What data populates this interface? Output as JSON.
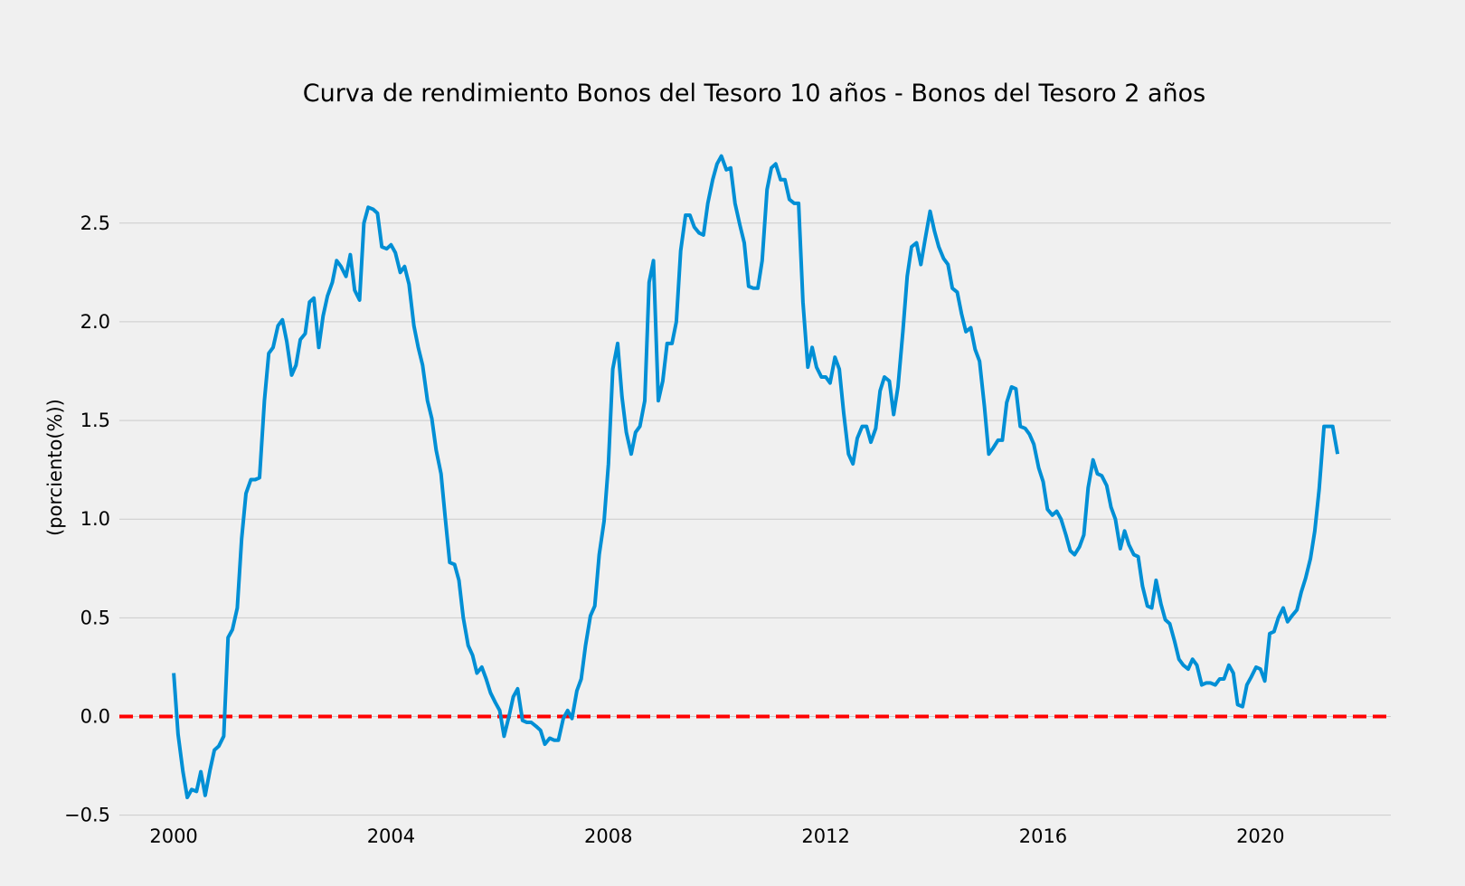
{
  "chart_data": {
    "type": "line",
    "title": "Curva de rendimiento Bonos del Tesoro 10 años - Bonos del Tesoro 2 años",
    "ylabel": "(porciento(%))",
    "xlabel": "",
    "xlim": [
      1999.0,
      2022.4
    ],
    "ylim": [
      -0.52,
      2.98
    ],
    "x_ticks": [
      2000,
      2004,
      2008,
      2012,
      2016,
      2020
    ],
    "x_tick_labels": [
      "2000",
      "2004",
      "2008",
      "2012",
      "2016",
      "2020"
    ],
    "y_ticks": [
      -0.5,
      0.0,
      0.5,
      1.0,
      1.5,
      2.0,
      2.5
    ],
    "y_tick_labels": [
      "−0.5",
      "0.0",
      "0.5",
      "1.0",
      "1.5",
      "2.0",
      "2.5"
    ],
    "grid": "horizontal",
    "reference_line": {
      "y": 0.0,
      "color": "#ff0000",
      "style": "dashed"
    },
    "series_color": "#008fd5",
    "background": "#f0f0f0",
    "series": [
      {
        "x": [
          2000.0,
          2000.08,
          2000.17,
          2000.25,
          2000.33,
          2000.42,
          2000.5,
          2000.58,
          2000.67,
          2000.75,
          2000.83,
          2000.92,
          2001.0,
          2001.08,
          2001.17,
          2001.25,
          2001.33,
          2001.42,
          2001.5,
          2001.58,
          2001.67,
          2001.75,
          2001.83,
          2001.92,
          2002.0,
          2002.08,
          2002.17,
          2002.25,
          2002.33,
          2002.42,
          2002.5,
          2002.58,
          2002.67,
          2002.75,
          2002.83,
          2002.92,
          2003.0,
          2003.08,
          2003.17,
          2003.25,
          2003.33,
          2003.42,
          2003.5,
          2003.58,
          2003.67,
          2003.75,
          2003.83,
          2003.92,
          2004.0,
          2004.08,
          2004.17,
          2004.25,
          2004.33,
          2004.42,
          2004.5,
          2004.58,
          2004.67,
          2004.75,
          2004.83,
          2004.92,
          2005.0,
          2005.08,
          2005.17,
          2005.25,
          2005.33,
          2005.42,
          2005.5,
          2005.58,
          2005.67,
          2005.75,
          2005.83,
          2005.92,
          2006.0,
          2006.08,
          2006.17,
          2006.25,
          2006.33,
          2006.42,
          2006.5,
          2006.58,
          2006.67,
          2006.75,
          2006.83,
          2006.92,
          2007.0,
          2007.08,
          2007.17,
          2007.25,
          2007.33,
          2007.42,
          2007.5,
          2007.58,
          2007.67,
          2007.75,
          2007.83,
          2007.92,
          2008.0,
          2008.08,
          2008.17,
          2008.25,
          2008.33,
          2008.42,
          2008.5,
          2008.58,
          2008.67,
          2008.75,
          2008.83,
          2008.92,
          2009.0,
          2009.08,
          2009.17,
          2009.25,
          2009.33,
          2009.42,
          2009.5,
          2009.58,
          2009.67,
          2009.75,
          2009.83,
          2009.92,
          2010.0,
          2010.08,
          2010.17,
          2010.25,
          2010.33,
          2010.42,
          2010.5,
          2010.58,
          2010.67,
          2010.75,
          2010.83,
          2010.92,
          2011.0,
          2011.08,
          2011.17,
          2011.25,
          2011.33,
          2011.42,
          2011.5,
          2011.58,
          2011.67,
          2011.75,
          2011.83,
          2011.92,
          2012.0,
          2012.08,
          2012.17,
          2012.25,
          2012.33,
          2012.42,
          2012.5,
          2012.58,
          2012.67,
          2012.75,
          2012.83,
          2012.92,
          2013.0,
          2013.08,
          2013.17,
          2013.25,
          2013.33,
          2013.42,
          2013.5,
          2013.58,
          2013.67,
          2013.75,
          2013.83,
          2013.92,
          2014.0,
          2014.08,
          2014.17,
          2014.25,
          2014.33,
          2014.42,
          2014.5,
          2014.58,
          2014.67,
          2014.75,
          2014.83,
          2014.92,
          2015.0,
          2015.08,
          2015.17,
          2015.25,
          2015.33,
          2015.42,
          2015.5,
          2015.58,
          2015.67,
          2015.75,
          2015.83,
          2015.92,
          2016.0,
          2016.08,
          2016.17,
          2016.25,
          2016.33,
          2016.42,
          2016.5,
          2016.58,
          2016.67,
          2016.75,
          2016.83,
          2016.92,
          2017.0,
          2017.08,
          2017.17,
          2017.25,
          2017.33,
          2017.42,
          2017.5,
          2017.58,
          2017.67,
          2017.75,
          2017.83,
          2017.92,
          2018.0,
          2018.08,
          2018.17,
          2018.25,
          2018.33,
          2018.42,
          2018.5,
          2018.58,
          2018.67,
          2018.75,
          2018.83,
          2018.92,
          2019.0,
          2019.08,
          2019.17,
          2019.25,
          2019.33,
          2019.42,
          2019.5,
          2019.58,
          2019.67,
          2019.75,
          2019.83,
          2019.92,
          2020.0,
          2020.08,
          2020.17,
          2020.25,
          2020.33,
          2020.42,
          2020.5,
          2020.58,
          2020.67,
          2020.75,
          2020.83,
          2020.92,
          2021.0,
          2021.08,
          2021.17,
          2021.25,
          2021.33,
          2021.42
        ],
        "values": [
          0.22,
          -0.09,
          -0.28,
          -0.41,
          -0.37,
          -0.38,
          -0.28,
          -0.4,
          -0.27,
          -0.17,
          -0.15,
          -0.1,
          0.4,
          0.44,
          0.55,
          0.9,
          1.13,
          1.2,
          1.2,
          1.21,
          1.6,
          1.84,
          1.87,
          1.98,
          2.01,
          1.9,
          1.73,
          1.78,
          1.91,
          1.94,
          2.1,
          2.12,
          1.87,
          2.03,
          2.13,
          2.2,
          2.31,
          2.28,
          2.23,
          2.34,
          2.16,
          2.11,
          2.5,
          2.58,
          2.57,
          2.55,
          2.38,
          2.37,
          2.39,
          2.35,
          2.25,
          2.28,
          2.19,
          1.98,
          1.87,
          1.78,
          1.6,
          1.51,
          1.35,
          1.23,
          1.0,
          0.78,
          0.77,
          0.69,
          0.5,
          0.36,
          0.31,
          0.22,
          0.25,
          0.19,
          0.12,
          0.07,
          0.03,
          -0.1,
          0.0,
          0.1,
          0.14,
          -0.02,
          -0.03,
          -0.03,
          -0.05,
          -0.07,
          -0.14,
          -0.11,
          -0.12,
          -0.12,
          -0.01,
          0.03,
          -0.01,
          0.13,
          0.19,
          0.36,
          0.51,
          0.56,
          0.82,
          0.99,
          1.28,
          1.76,
          1.89,
          1.62,
          1.44,
          1.33,
          1.44,
          1.47,
          1.6,
          2.2,
          2.31,
          1.6,
          1.7,
          1.89,
          1.89,
          2.0,
          2.36,
          2.54,
          2.54,
          2.48,
          2.45,
          2.44,
          2.6,
          2.72,
          2.8,
          2.84,
          2.77,
          2.78,
          2.6,
          2.49,
          2.4,
          2.18,
          2.17,
          2.17,
          2.31,
          2.67,
          2.78,
          2.8,
          2.72,
          2.72,
          2.62,
          2.6,
          2.6,
          2.1,
          1.77,
          1.87,
          1.77,
          1.72,
          1.72,
          1.69,
          1.82,
          1.76,
          1.54,
          1.33,
          1.28,
          1.41,
          1.47,
          1.47,
          1.39,
          1.46,
          1.65,
          1.72,
          1.7,
          1.53,
          1.67,
          1.95,
          2.23,
          2.38,
          2.4,
          2.29,
          2.42,
          2.56,
          2.46,
          2.38,
          2.32,
          2.29,
          2.17,
          2.15,
          2.04,
          1.95,
          1.97,
          1.86,
          1.8,
          1.57,
          1.33,
          1.36,
          1.4,
          1.4,
          1.59,
          1.67,
          1.66,
          1.47,
          1.46,
          1.43,
          1.38,
          1.26,
          1.19,
          1.05,
          1.02,
          1.04,
          1.0,
          0.92,
          0.84,
          0.82,
          0.86,
          0.92,
          1.16,
          1.3,
          1.23,
          1.22,
          1.17,
          1.06,
          1.0,
          0.85,
          0.94,
          0.87,
          0.82,
          0.81,
          0.66,
          0.56,
          0.55,
          0.69,
          0.57,
          0.49,
          0.47,
          0.38,
          0.29,
          0.26,
          0.24,
          0.29,
          0.26,
          0.16,
          0.17,
          0.17,
          0.16,
          0.19,
          0.19,
          0.26,
          0.22,
          0.06,
          0.05,
          0.16,
          0.2,
          0.25,
          0.24,
          0.18,
          0.42,
          0.43,
          0.5,
          0.55,
          0.48,
          0.51,
          0.54,
          0.63,
          0.7,
          0.8,
          0.94,
          1.15,
          1.47,
          1.47,
          1.47,
          1.33
        ]
      }
    ]
  }
}
